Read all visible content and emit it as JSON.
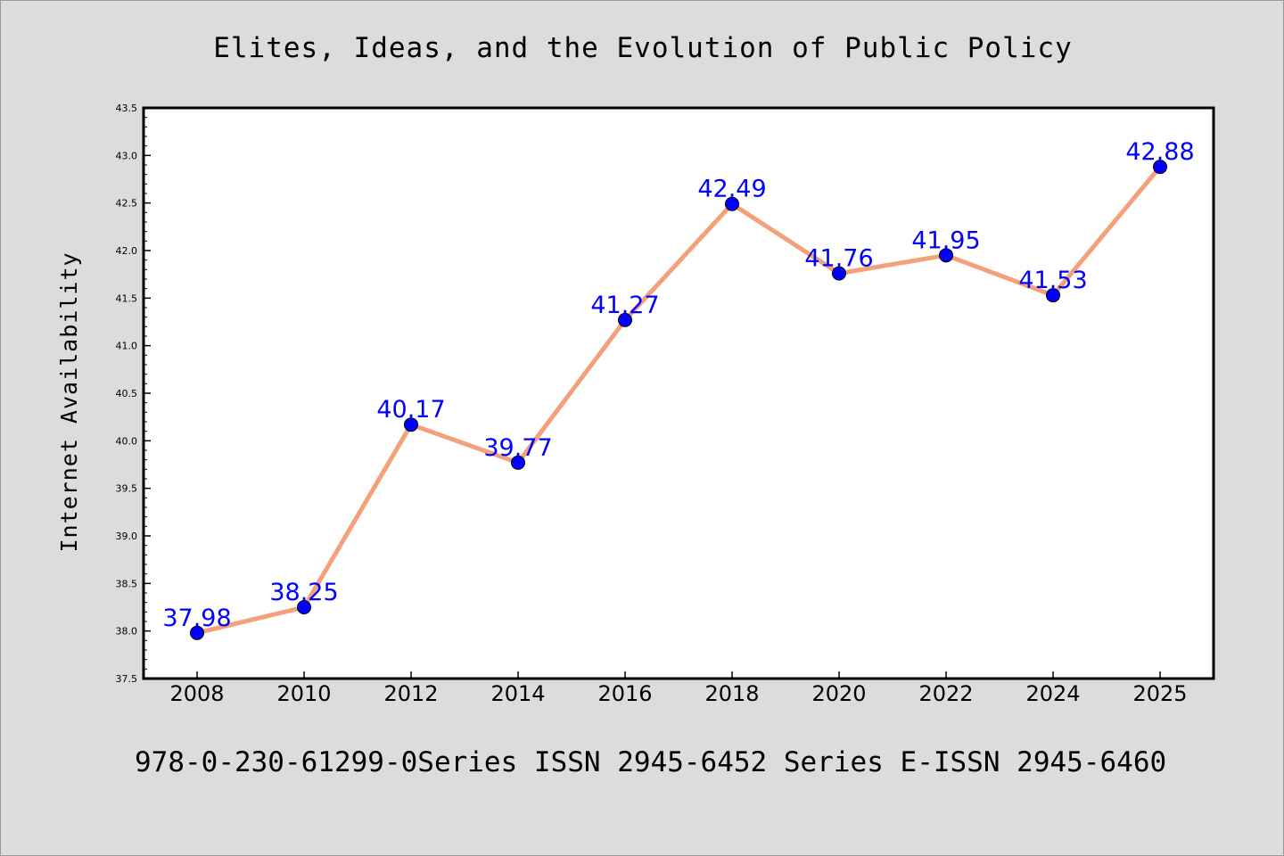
{
  "chart_data": {
    "type": "line",
    "title": "Elites, Ideas, and the Evolution of Public Policy",
    "ylabel": "Internet Availability",
    "xlabel": "",
    "footer": "978-0-230-61299-0Series ISSN 2945-6452 Series E-ISSN 2945-6460",
    "categories": [
      "2008",
      "2010",
      "2012",
      "2014",
      "2016",
      "2018",
      "2020",
      "2022",
      "2024",
      "2025"
    ],
    "series": [
      {
        "values": [
          37.98,
          38.25,
          40.17,
          39.77,
          41.27,
          42.49,
          41.76,
          41.95,
          41.53,
          42.88
        ],
        "line_color": "#f4a07a",
        "marker_color": "#0000ff"
      }
    ],
    "data_labels": [
      "37.98",
      "38.25",
      "40.17",
      "39.77",
      "41.27",
      "42.49",
      "41.76",
      "41.95",
      "41.53",
      "42.88"
    ],
    "ylim": [
      37.5,
      43.5
    ],
    "yticks": [
      "37.5",
      "38.0",
      "38.5",
      "39.0",
      "39.5",
      "40.0",
      "40.5",
      "41.0",
      "41.5",
      "42.0",
      "42.5",
      "43.0",
      "43.5"
    ],
    "grid": false,
    "legend": "none",
    "colors": {
      "background": "#dcdcdc",
      "plot_background": "#ffffff",
      "axis": "#000000",
      "label_text": "#0000ff"
    }
  }
}
